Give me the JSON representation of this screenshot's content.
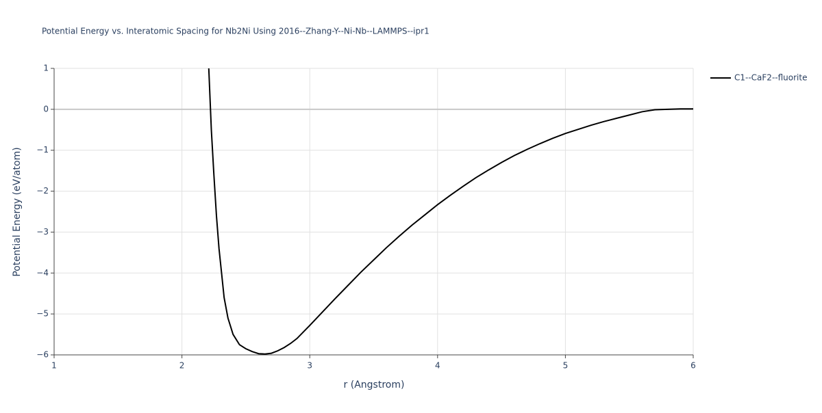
{
  "chart_data": {
    "type": "line",
    "title": "Potential Energy vs. Interatomic Spacing for Nb2Ni Using 2016--Zhang-Y--Ni-Nb--LAMMPS--ipr1",
    "x_label": "r (Angstrom)",
    "y_label": "Potential Energy (eV/atom)",
    "x": [
      2.21,
      2.23,
      2.25,
      2.27,
      2.29,
      2.31,
      2.33,
      2.36,
      2.4,
      2.45,
      2.5,
      2.55,
      2.6,
      2.65,
      2.7,
      2.75,
      2.8,
      2.85,
      2.9,
      3.0,
      3.1,
      3.2,
      3.3,
      3.4,
      3.5,
      3.6,
      3.7,
      3.8,
      3.9,
      4.0,
      4.1,
      4.2,
      4.3,
      4.4,
      4.5,
      4.6,
      4.7,
      4.8,
      4.9,
      5.0,
      5.1,
      5.2,
      5.3,
      5.4,
      5.5,
      5.6,
      5.7,
      5.8,
      5.9,
      6.0
    ],
    "series": [
      {
        "name": "C1--CaF2--fluorite",
        "color": "#000000",
        "values": [
          1.0,
          -0.5,
          -1.6,
          -2.6,
          -3.4,
          -4.0,
          -4.6,
          -5.1,
          -5.5,
          -5.75,
          -5.85,
          -5.92,
          -5.97,
          -5.98,
          -5.96,
          -5.9,
          -5.82,
          -5.72,
          -5.6,
          -5.28,
          -4.95,
          -4.62,
          -4.3,
          -3.98,
          -3.68,
          -3.38,
          -3.1,
          -2.83,
          -2.58,
          -2.33,
          -2.1,
          -1.88,
          -1.67,
          -1.48,
          -1.3,
          -1.13,
          -0.98,
          -0.84,
          -0.71,
          -0.59,
          -0.49,
          -0.39,
          -0.3,
          -0.22,
          -0.14,
          -0.06,
          -0.01,
          0.0,
          0.01,
          0.01
        ]
      }
    ],
    "xlim": [
      1,
      6
    ],
    "xticks": [
      1,
      2,
      3,
      4,
      5,
      6
    ],
    "ylim": [
      -6,
      1
    ],
    "yticks": [
      {
        "value": -6,
        "label": "−6"
      },
      {
        "value": -5,
        "label": "−5"
      },
      {
        "value": -4,
        "label": "−4"
      },
      {
        "value": -3,
        "label": "−3"
      },
      {
        "value": -2,
        "label": "−2"
      },
      {
        "value": -1,
        "label": "−1"
      },
      0,
      1
    ],
    "grid": true,
    "legend": "top-right"
  }
}
